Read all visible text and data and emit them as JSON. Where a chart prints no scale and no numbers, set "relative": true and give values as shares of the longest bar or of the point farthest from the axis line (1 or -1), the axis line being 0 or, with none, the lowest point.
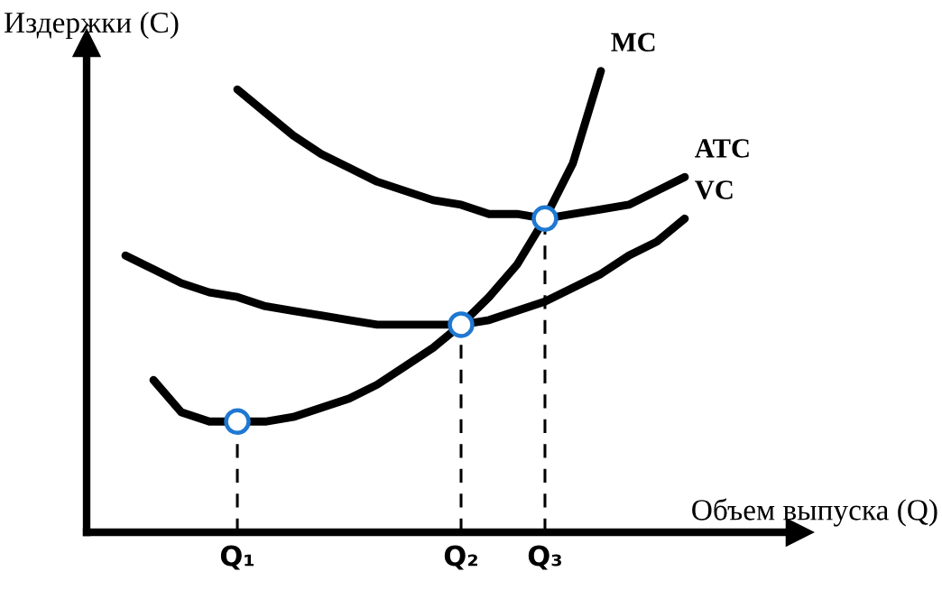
{
  "chart_data": {
    "type": "line",
    "relative": true,
    "xlabel": "Объем выпуска (Q)",
    "ylabel": "Издержки (C)",
    "categories": [
      null,
      null,
      null,
      null,
      "Q₁",
      null,
      null,
      null,
      null,
      null,
      null,
      null,
      "Q₂",
      null,
      null,
      "Q₃",
      null,
      null,
      null,
      null,
      null
    ],
    "series": [
      {
        "name": "MC",
        "color": "#000000",
        "values": [
          null,
          0.33,
          0.26,
          0.24,
          0.24,
          0.24,
          0.25,
          0.27,
          0.29,
          0.32,
          0.36,
          0.4,
          0.45,
          0.51,
          0.58,
          0.68,
          0.8,
          1.0,
          null,
          null,
          null
        ]
      },
      {
        "name": "ATC",
        "color": "#000000",
        "values": [
          null,
          null,
          null,
          null,
          0.96,
          0.91,
          0.86,
          0.82,
          0.79,
          0.76,
          0.74,
          0.72,
          0.71,
          0.69,
          0.69,
          0.68,
          0.69,
          0.7,
          0.71,
          0.74,
          0.77
        ]
      },
      {
        "name": "VC",
        "color": "#000000",
        "values": [
          0.6,
          0.57,
          0.54,
          0.52,
          0.51,
          0.49,
          0.48,
          0.47,
          0.46,
          0.45,
          0.45,
          0.45,
          0.45,
          0.46,
          0.48,
          0.5,
          0.53,
          0.56,
          0.6,
          0.63,
          0.68
        ]
      },
      {
        "type": "lollipop",
        "color": "#1f78d1",
        "line_style": "dashed",
        "marker": "circle",
        "values": [
          null,
          null,
          null,
          null,
          0.24,
          null,
          null,
          null,
          null,
          null,
          null,
          null,
          0.45,
          null,
          null,
          0.68,
          null,
          null,
          null,
          null,
          null
        ]
      }
    ],
    "legend": false,
    "grid": false
  }
}
